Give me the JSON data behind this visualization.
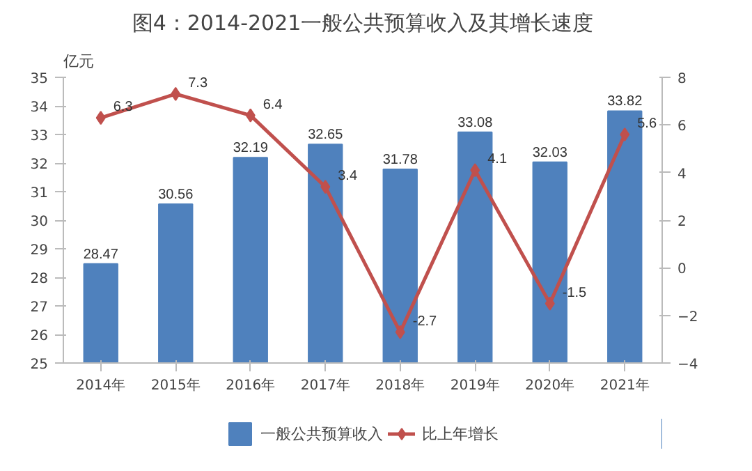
{
  "chart_data": {
    "type": "bar",
    "title": "图4：2014-2021一般公共预算收入及其增长速度",
    "ylabel": "亿元",
    "categories": [
      "2014年",
      "2015年",
      "2016年",
      "2017年",
      "2018年",
      "2019年",
      "2020年",
      "2021年"
    ],
    "series": [
      {
        "name": "一般公共预算收入",
        "color": "#4f81bd",
        "values": [
          28.47,
          30.56,
          32.19,
          32.65,
          31.78,
          33.08,
          32.03,
          33.82
        ]
      },
      {
        "name": "比上年增长",
        "type": "line",
        "axis": "y2",
        "color": "#c0504d",
        "marker": "diamond",
        "values": [
          6.3,
          7.3,
          6.4,
          3.4,
          -2.7,
          4.1,
          -1.5,
          5.6
        ]
      }
    ],
    "ylim": [
      25,
      35
    ],
    "yticks": [
      25,
      26,
      27,
      28,
      29,
      30,
      31,
      32,
      33,
      34,
      35
    ],
    "y2lim": [
      -4,
      8
    ],
    "y2ticks": [
      -4,
      -2,
      0,
      2,
      4,
      6,
      8
    ],
    "data_labels": true,
    "legend": "bottom",
    "grid": false
  }
}
